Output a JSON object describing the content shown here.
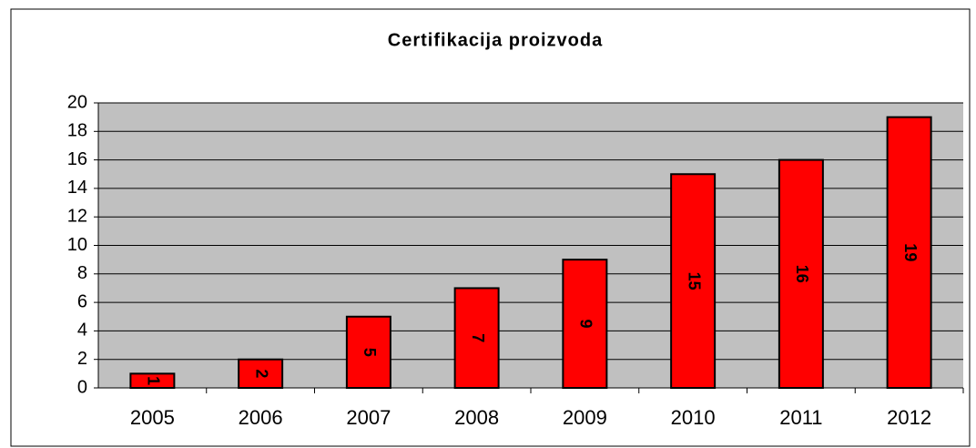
{
  "chart_data": {
    "type": "bar",
    "title": "Certifikacija proizvoda",
    "categories": [
      "2005",
      "2006",
      "2007",
      "2008",
      "2009",
      "2010",
      "2011",
      "2012"
    ],
    "values": [
      1,
      2,
      5,
      7,
      9,
      15,
      16,
      19
    ],
    "color": "#ff0000",
    "ylim": [
      0,
      20
    ],
    "yticks": [
      0,
      2,
      4,
      6,
      8,
      10,
      12,
      14,
      16,
      18,
      20
    ],
    "grid": true,
    "data_labels": true
  }
}
